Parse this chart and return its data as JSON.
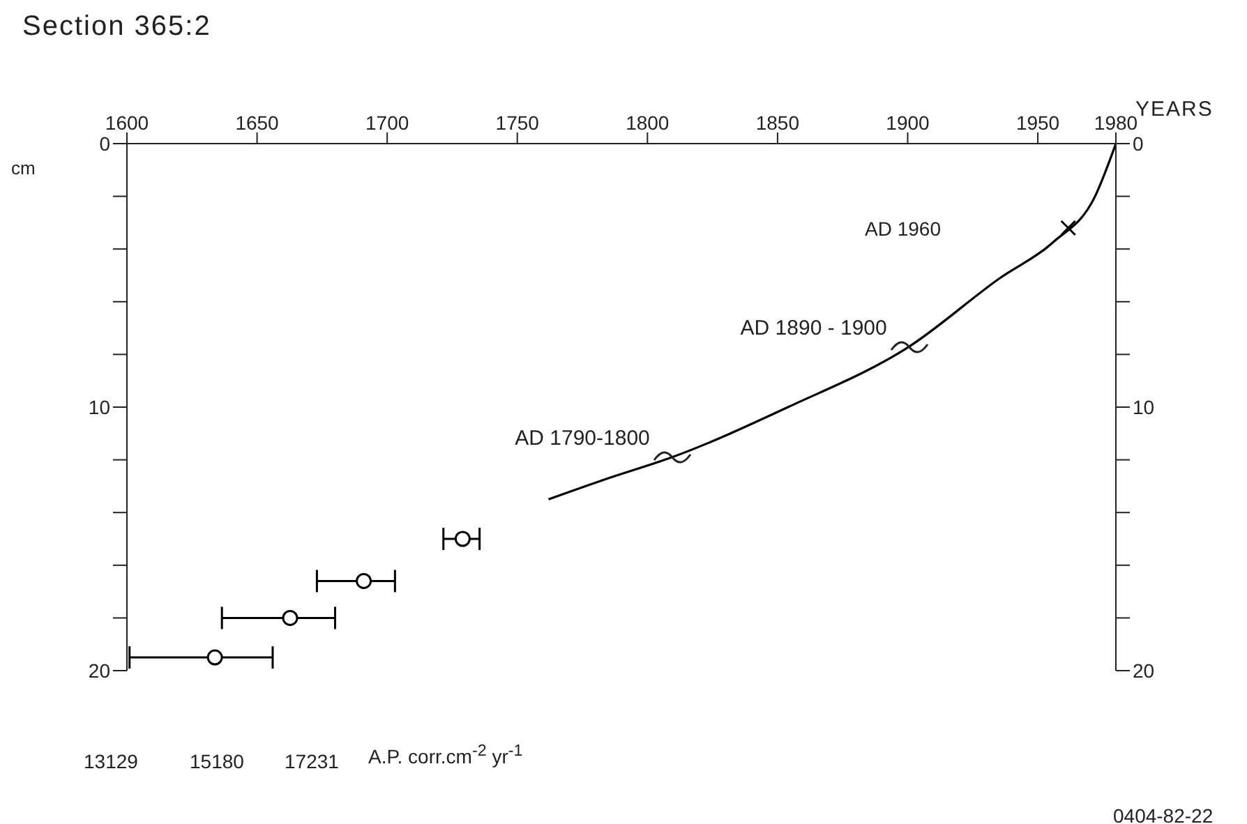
{
  "chart_data": {
    "type": "line",
    "title": "Section 365:2",
    "xlabel": "YEARS",
    "ylabel": "cm",
    "xlim": [
      1600,
      1980
    ],
    "xticks": [
      1600,
      1650,
      1700,
      1750,
      1800,
      1850,
      1900,
      1950,
      1980
    ],
    "ylim": [
      20,
      0
    ],
    "yticks": [
      0,
      {
        "value": 2,
        "label": null
      },
      {
        "value": 4,
        "label": null
      },
      {
        "value": 6,
        "label": null
      },
      {
        "value": 8,
        "label": null
      },
      10,
      {
        "value": 12,
        "label": null
      },
      {
        "value": 14,
        "label": null
      },
      {
        "value": 16,
        "label": null
      },
      {
        "value": 18,
        "label": null
      },
      20
    ],
    "y2lim": [
      20,
      0
    ],
    "y2ticks": [
      0,
      {
        "value": 2,
        "label": null
      },
      {
        "value": 4,
        "label": null
      },
      {
        "value": 6,
        "label": null
      },
      {
        "value": 8,
        "label": null
      },
      10,
      {
        "value": 12,
        "label": null
      },
      {
        "value": 14,
        "label": null
      },
      {
        "value": 16,
        "label": null
      },
      {
        "value": 18,
        "label": null
      },
      20
    ],
    "grid": false,
    "legend": false,
    "series": [
      {
        "color": "#000000",
        "x": [
          1762,
          1785,
          1809.5,
          1854,
          1900.6,
          1935.5,
          1955.8,
          1972,
          1980
        ],
        "values": [
          13.5,
          12.7,
          11.9,
          10,
          7.7,
          5.1,
          3.75,
          2,
          0
        ]
      },
      {
        "type": "scatter",
        "color": "#000000",
        "marker": "cross",
        "x": [
          1961.7
        ],
        "values": [
          3.2
        ]
      },
      {
        "type": "scatter",
        "color": "#000000",
        "marker": "circle",
        "x": [
          1729,
          1691,
          1662.7,
          1633.8
        ],
        "values": [
          15,
          16.6,
          18,
          19.5
        ],
        "xerrors": [
          [
            1721.6,
            1735.5
          ],
          [
            1673,
            1703
          ],
          [
            1636.5,
            1680
          ],
          [
            1601,
            1656
          ]
        ]
      }
    ],
    "annotations": [
      "AD  1960",
      {
        "text": "AD 1890 - 1900",
        "x": 1900.6,
        "y": 7.7
      },
      {
        "text": "AD 1790-1800",
        "x": 1809.5,
        "y": 11.9
      },
      "13129",
      "15180",
      "17231",
      "A.P. corr.cm$^{-2}$ yr$^{-1}$",
      "0404-82-22"
    ]
  }
}
